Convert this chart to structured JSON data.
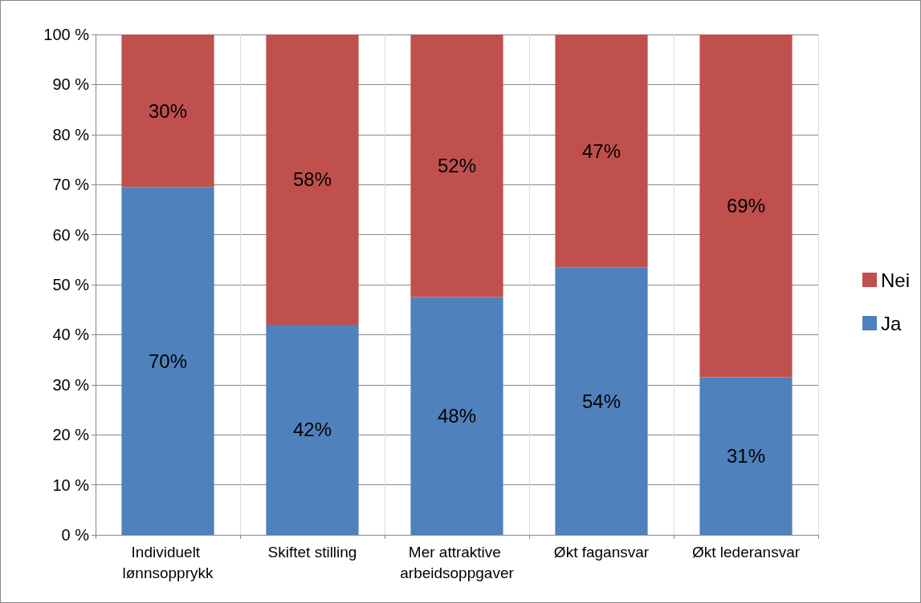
{
  "chart_data": {
    "type": "bar",
    "stacked": true,
    "categories": [
      "Individuelt lønnsopprykk",
      "Skiftet stilling",
      "Mer attraktive arbeidsoppgaver",
      "Økt fagansvar",
      "Økt lederansvar"
    ],
    "series": [
      {
        "name": "Ja",
        "color": "#4f81bd",
        "values": [
          69.5,
          42,
          47.5,
          53.5,
          31.5
        ],
        "value_labels": [
          "70%",
          "42%",
          "48%",
          "54%",
          "31%"
        ]
      },
      {
        "name": "Nei",
        "color": "#c0504d",
        "values": [
          30.5,
          58,
          52.5,
          46.5,
          68.5
        ],
        "value_labels": [
          "30%",
          "58%",
          "52%",
          "47%",
          "69%"
        ]
      }
    ],
    "ylim": [
      0,
      100
    ],
    "yticks": [
      {
        "value": 0,
        "label": "0 %"
      },
      {
        "value": 10,
        "label": "10 %"
      },
      {
        "value": 20,
        "label": "20 %"
      },
      {
        "value": 30,
        "label": "30 %"
      },
      {
        "value": 40,
        "label": "40 %"
      },
      {
        "value": 50,
        "label": "50 %"
      },
      {
        "value": 60,
        "label": "60 %"
      },
      {
        "value": 70,
        "label": "70 %"
      },
      {
        "value": 80,
        "label": "80 %"
      },
      {
        "value": 90,
        "label": "90 %"
      },
      {
        "value": 100,
        "label": "100 %"
      }
    ],
    "grid": true,
    "legend": "right"
  }
}
